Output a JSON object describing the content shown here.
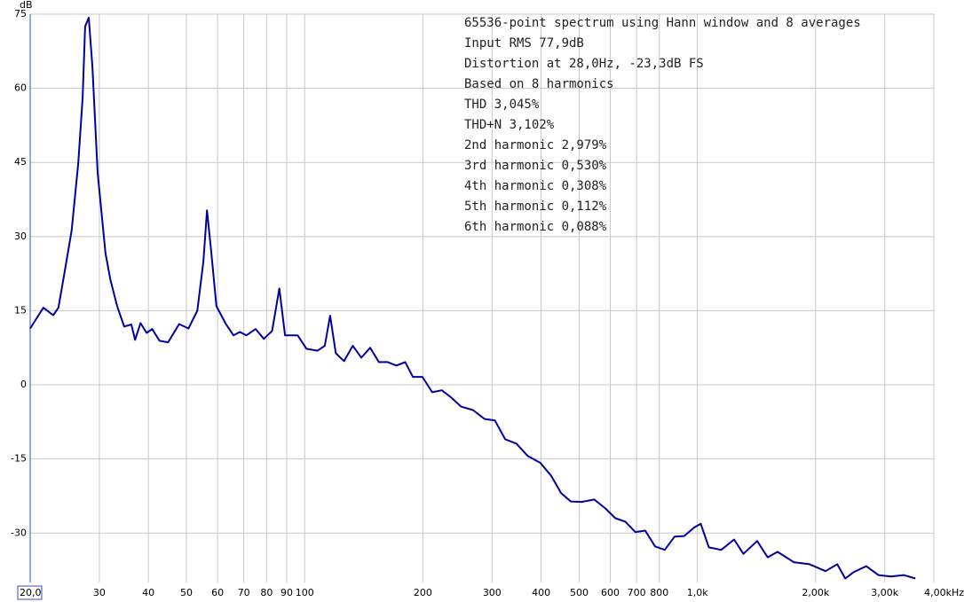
{
  "chart_data": {
    "type": "line",
    "y_label": "dB",
    "annotations": [
      "65536-point spectrum using Hann window and 8 averages",
      "Input RMS 77,9dB",
      "Distortion at 28,0Hz, -23,3dB FS",
      "Based on 8 harmonics",
      "THD 3,045%",
      "THD+N 3,102%",
      "2nd harmonic 2,979%",
      "3rd harmonic 0,530%",
      "4th harmonic 0,308%",
      "5th harmonic 0,112%",
      "6th harmonic 0,088%"
    ],
    "x_log": true,
    "grid": true,
    "xlim": [
      20,
      4000
    ],
    "ylim": [
      -40,
      75
    ],
    "xticks": [
      {
        "value": 20,
        "label": "20,0"
      },
      30,
      40,
      50,
      60,
      70,
      80,
      90,
      100,
      200,
      300,
      400,
      500,
      600,
      700,
      800,
      {
        "value": 1000,
        "label": "1,0k"
      },
      {
        "value": 2000,
        "label": "2,00k"
      },
      {
        "value": 3000,
        "label": "3,00k"
      },
      {
        "value": 4000,
        "label": "4,00kHz"
      }
    ],
    "yticks": [
      75,
      60,
      45,
      30,
      15,
      0,
      -15,
      -30
    ],
    "series": [
      {
        "color": "#0000a0",
        "x": [
          20.0,
          21.6,
          22.9,
          23.6,
          24.4,
          25.5,
          26.5,
          27.2,
          27.6,
          28.2,
          28.8,
          29.7,
          31.1,
          32.0,
          33.3,
          34.7,
          36.2,
          37.0,
          38.2,
          39.6,
          40.9,
          42.7,
          44.9,
          47.9,
          50.6,
          53.3,
          55.2,
          56.4,
          57.7,
          59.6,
          63.0,
          65.9,
          68.4,
          71.0,
          75.0,
          78.7,
          82.6,
          86.2,
          89.1,
          92.4,
          96.0,
          101.1,
          107.8,
          112.5,
          116.1,
          120.0,
          126.0,
          132.6,
          139.4,
          146.8,
          154.5,
          162.7,
          171.2,
          180.3,
          188.6,
          199.5,
          211.2,
          223.4,
          236.4,
          250.1,
          268.2,
          287.0,
          305.0,
          324.0,
          346.2,
          369.8,
          398.4,
          424.2,
          449.8,
          476.0,
          507.8,
          546.2,
          582.7,
          618.0,
          655.4,
          695.0,
          736.5,
          780.4,
          825.8,
          875.0,
          925.9,
          980.0,
          1020,
          1070,
          1150,
          1240,
          1310,
          1420,
          1510,
          1600,
          1760,
          1930,
          2120,
          2270,
          2380,
          2500,
          2690,
          2890,
          3110,
          3350,
          3590
        ],
        "values": [
          11.4,
          15.6,
          14.1,
          15.6,
          22.2,
          31.2,
          44.7,
          58.1,
          72.5,
          74.3,
          64.4,
          42.9,
          26.7,
          21.3,
          15.9,
          11.8,
          12.2,
          9.1,
          12.5,
          10.5,
          11.3,
          8.9,
          8.6,
          12.3,
          11.4,
          15.0,
          24.9,
          35.3,
          27.6,
          15.9,
          12.3,
          10.0,
          10.7,
          10.0,
          11.3,
          9.3,
          10.9,
          19.5,
          10.0,
          10.0,
          10.0,
          7.3,
          6.9,
          7.9,
          14.0,
          6.4,
          4.8,
          7.9,
          5.5,
          7.5,
          4.6,
          4.6,
          3.9,
          4.6,
          1.6,
          1.6,
          -1.5,
          -1.1,
          -2.6,
          -4.4,
          -5.1,
          -6.9,
          -7.2,
          -11.0,
          -11.9,
          -14.4,
          -15.8,
          -18.4,
          -21.9,
          -23.6,
          -23.7,
          -23.2,
          -25.0,
          -27.0,
          -27.7,
          -29.8,
          -29.5,
          -32.7,
          -33.4,
          -30.7,
          -30.6,
          -28.9,
          -28.1,
          -32.9,
          -33.4,
          -31.3,
          -34.2,
          -31.6,
          -34.9,
          -33.8,
          -35.9,
          -36.3,
          -37.7,
          -36.3,
          -39.2,
          -37.9,
          -36.7,
          -38.5,
          -38.8,
          -38.5,
          -39.2
        ]
      }
    ]
  }
}
